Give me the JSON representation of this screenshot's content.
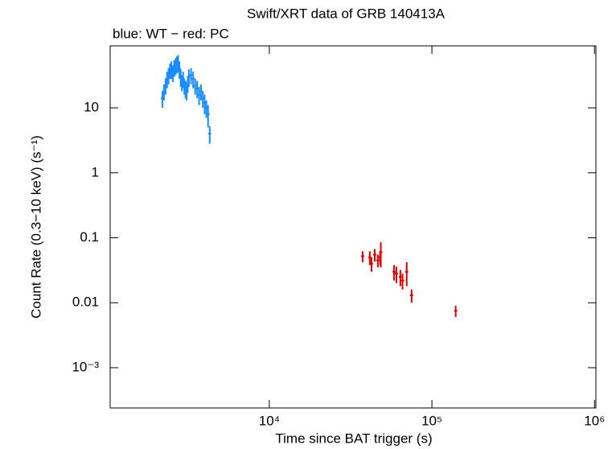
{
  "chart_data": {
    "type": "scatter",
    "title": "Swift/XRT data of GRB 140413A",
    "subtitle": "blue: WT − red: PC",
    "x_label": "Time since BAT trigger (s)",
    "y_label": "Count Rate (0.3−10 keV) (s⁻¹)",
    "log_x": true,
    "log_y": true,
    "xlim": [
      1050,
      1020000
    ],
    "ylim": [
      0.00024,
      90
    ],
    "xticks": [
      {
        "value": 10000,
        "label": "10⁴"
      },
      {
        "value": 100000,
        "label": "10⁵"
      },
      {
        "value": 1000000,
        "label": "10⁶"
      }
    ],
    "yticks": [
      {
        "value": 0.001,
        "label": "10⁻³"
      },
      0.01,
      0.1,
      1,
      10
    ],
    "series": [
      {
        "name": "WT",
        "color": "#1a8cff",
        "x": [
          2200,
          2250,
          2300,
          2350,
          2400,
          2450,
          2500,
          2550,
          2600,
          2650,
          2700,
          2750,
          2800,
          2850,
          2900,
          2950,
          3000,
          3050,
          3100,
          3150,
          3200,
          3300,
          3400,
          3500,
          3600,
          3700,
          3800,
          3900,
          4000,
          4100,
          4200,
          4300
        ],
        "values": [
          14,
          18,
          22,
          28,
          32,
          38,
          40,
          35,
          42,
          45,
          48,
          50,
          40,
          30,
          25,
          28,
          22,
          20,
          18,
          24,
          30,
          32,
          28,
          22,
          20,
          16,
          18,
          14,
          12,
          10,
          8,
          4
        ],
        "errors": [
          4,
          5,
          6,
          8,
          9,
          10,
          12,
          10,
          12,
          13,
          14,
          15,
          12,
          9,
          7,
          8,
          6,
          6,
          5,
          7,
          9,
          9,
          8,
          6,
          6,
          5,
          5,
          4,
          4,
          3,
          3,
          1.2
        ]
      },
      {
        "name": "PC",
        "color": "#e00000",
        "x": [
          37500,
          41500,
          42500,
          44500,
          46500,
          48000,
          48500,
          58500,
          60500,
          64000,
          66000,
          70000,
          75000,
          140000
        ],
        "values": [
          0.052,
          0.05,
          0.04,
          0.055,
          0.045,
          0.05,
          0.06,
          0.03,
          0.028,
          0.025,
          0.022,
          0.03,
          0.013,
          0.0075
        ],
        "errors": [
          0.01,
          0.012,
          0.01,
          0.012,
          0.01,
          0.012,
          0.025,
          0.008,
          0.008,
          0.007,
          0.006,
          0.012,
          0.003,
          0.0015
        ]
      }
    ]
  }
}
